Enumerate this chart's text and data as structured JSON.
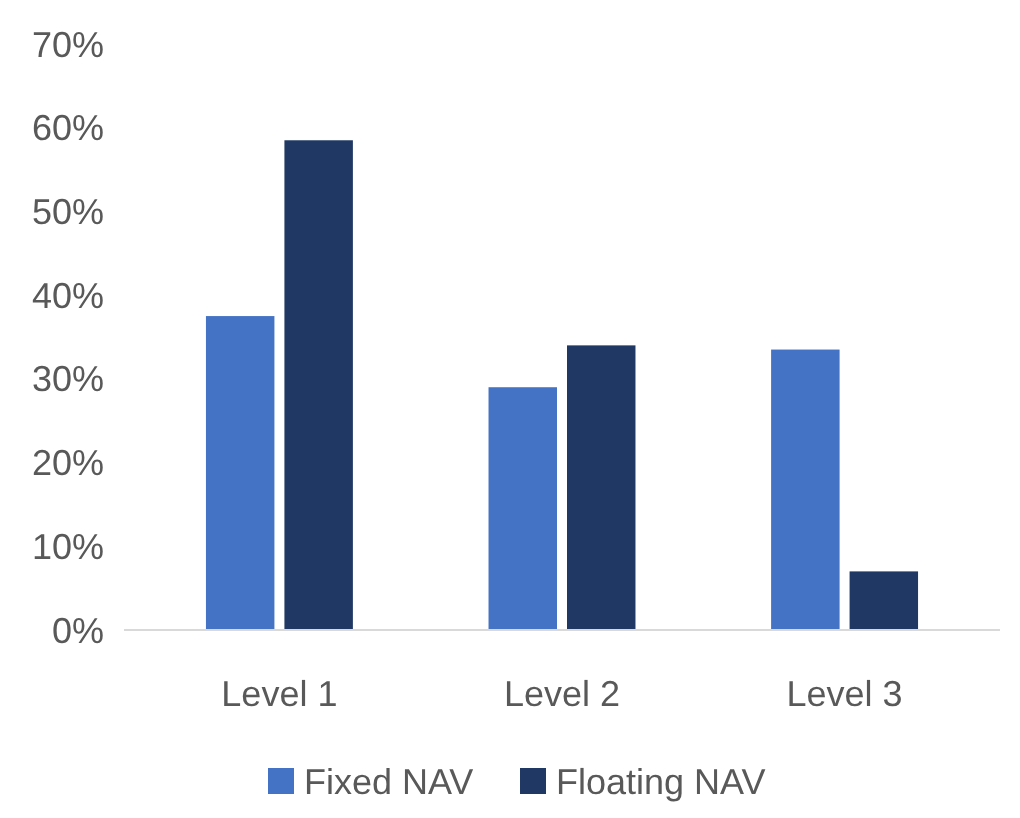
{
  "chart_data": {
    "type": "bar",
    "categories": [
      "Level 1",
      "Level 2",
      "Level 3"
    ],
    "series": [
      {
        "name": "Fixed NAV",
        "color": "#4472c4",
        "values": [
          37.5,
          29,
          33.5
        ]
      },
      {
        "name": "Floating NAV",
        "color": "#203864",
        "values": [
          58.5,
          34,
          7
        ]
      }
    ],
    "ylim": [
      0,
      70
    ],
    "yticks": [
      {
        "value": 0,
        "label": "0%"
      },
      {
        "value": 10,
        "label": "10%"
      },
      {
        "value": 20,
        "label": "20%"
      },
      {
        "value": 30,
        "label": "30%"
      },
      {
        "value": 40,
        "label": "40%"
      },
      {
        "value": 50,
        "label": "50%"
      },
      {
        "value": 60,
        "label": "60%"
      },
      {
        "value": 70,
        "label": "70%"
      }
    ],
    "grid": false,
    "legend": "bottom"
  }
}
